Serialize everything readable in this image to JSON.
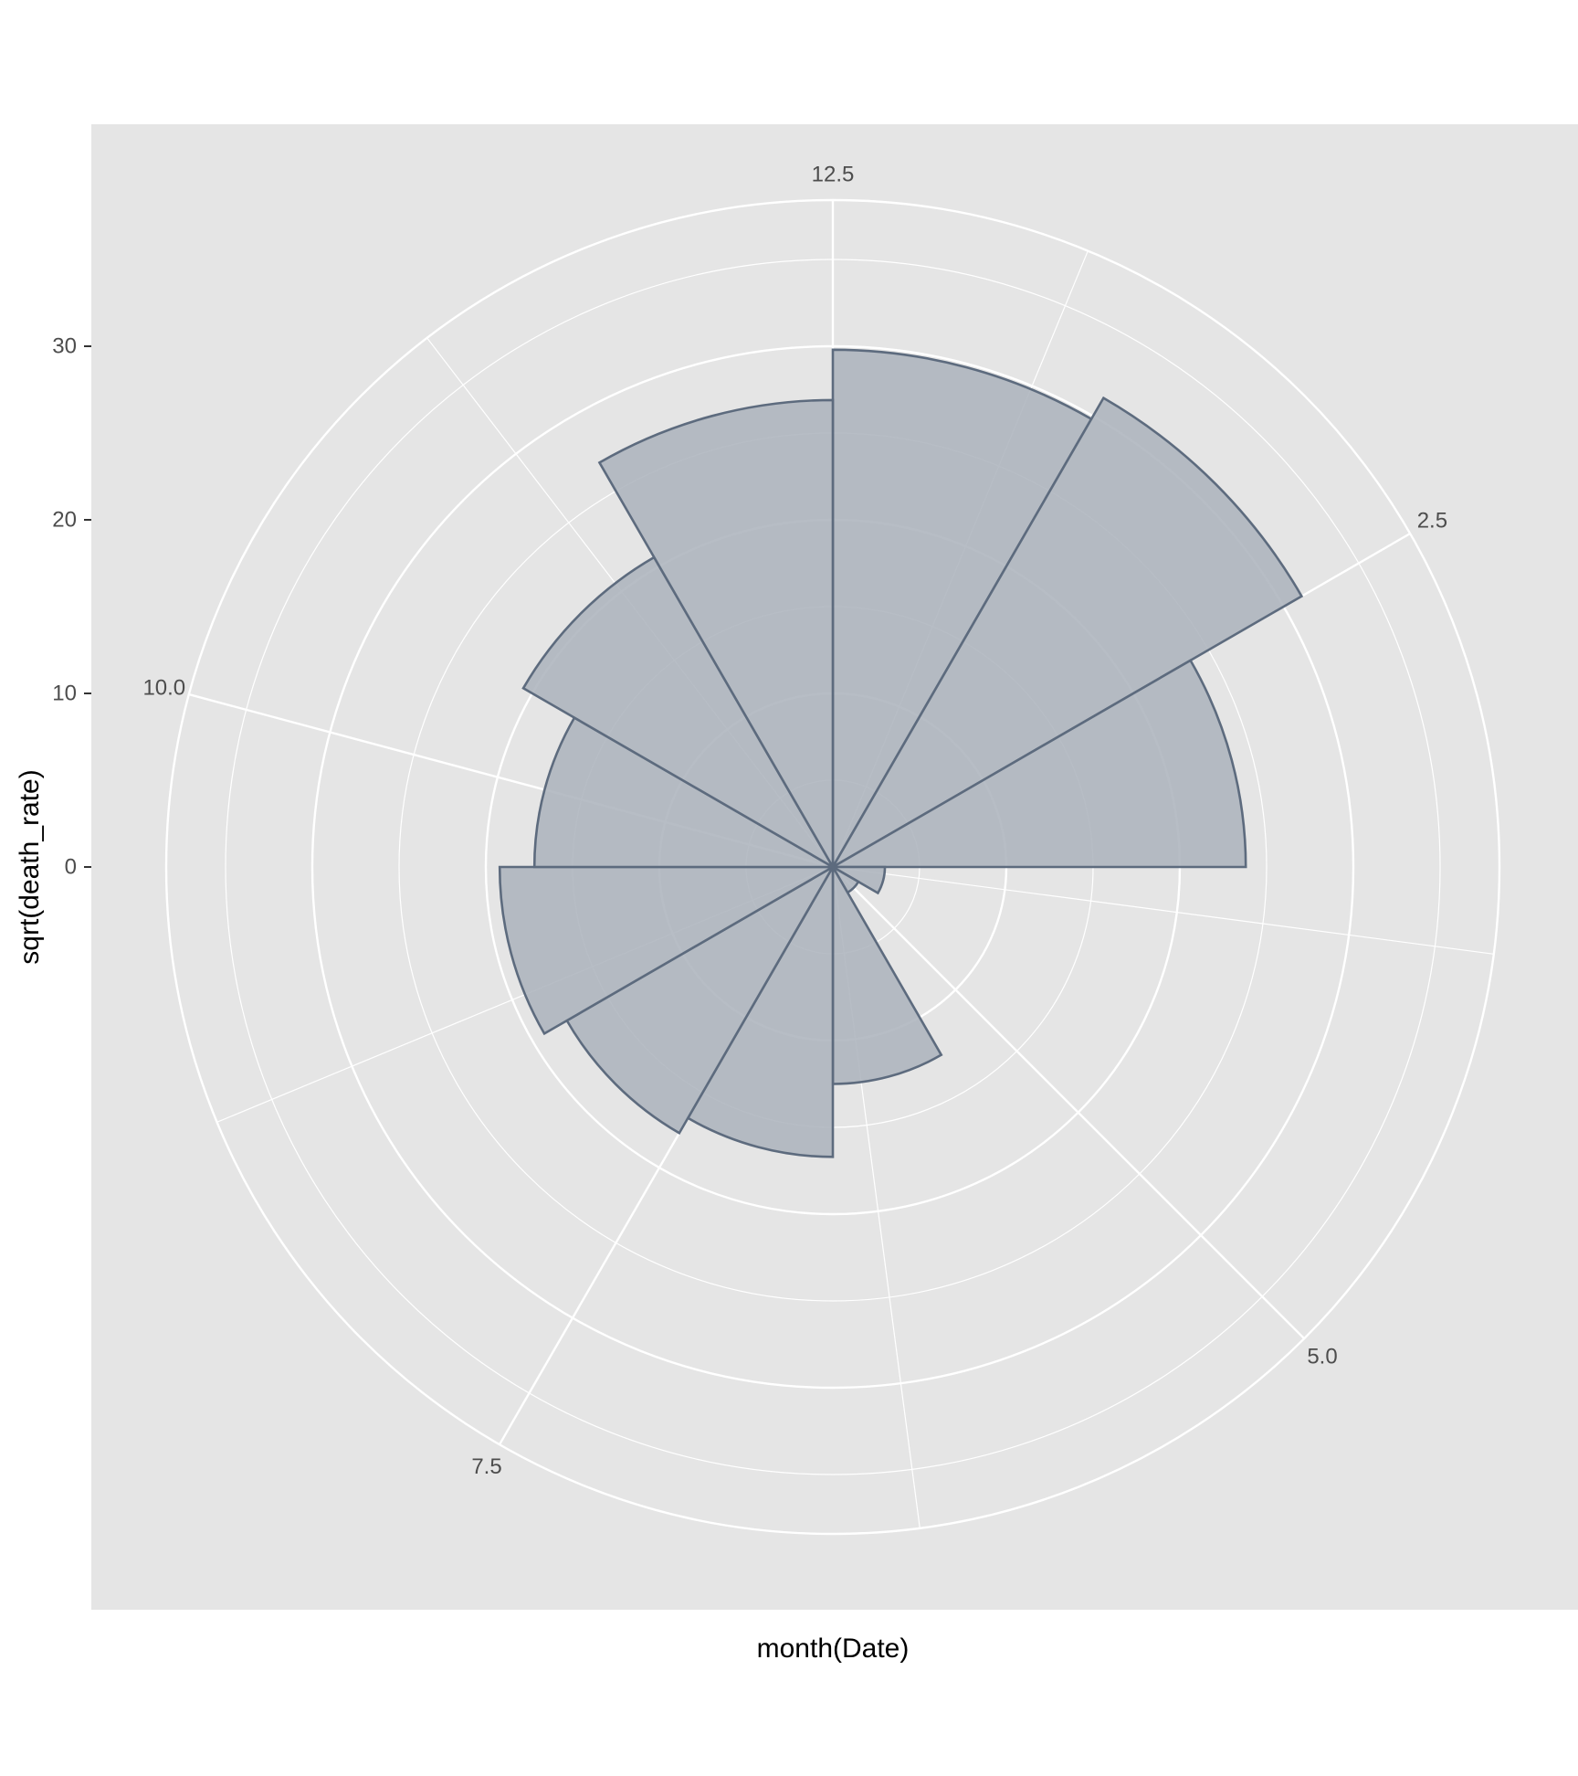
{
  "chart_data": {
    "type": "bar",
    "coordinate_system": "polar",
    "xlabel": "month(Date)",
    "ylabel": "sqrt(death_rate)",
    "x": [
      1,
      2,
      3,
      4,
      5,
      6,
      7,
      8,
      9,
      10,
      11,
      12
    ],
    "values": [
      29.8,
      31.2,
      23.8,
      3.0,
      1.7,
      12.5,
      16.7,
      17.7,
      19.2,
      17.2,
      20.6,
      26.9
    ],
    "xlim": [
      0.5,
      12.5
    ],
    "ylim": [
      0,
      36
    ],
    "x_ticks": [
      {
        "value": 2.5,
        "label": "2.5"
      },
      {
        "value": 5.0,
        "label": "5.0"
      },
      {
        "value": 7.5,
        "label": "7.5"
      },
      {
        "value": 10.0,
        "label": "10.0"
      },
      {
        "value": 12.5,
        "label": "12.5"
      }
    ],
    "x_minor_ticks": [
      1.25,
      3.75,
      6.25,
      8.75,
      11.25
    ],
    "y_ticks": [
      {
        "value": 0,
        "label": "0"
      },
      {
        "value": 10,
        "label": "10"
      },
      {
        "value": 20,
        "label": "20"
      },
      {
        "value": 30,
        "label": "30"
      }
    ],
    "grid": true,
    "colors": {
      "panel": "#e5e5e5",
      "grid": "#ffffff",
      "bar_fill": "#adb4bd",
      "bar_stroke": "#5d6b7e"
    }
  }
}
